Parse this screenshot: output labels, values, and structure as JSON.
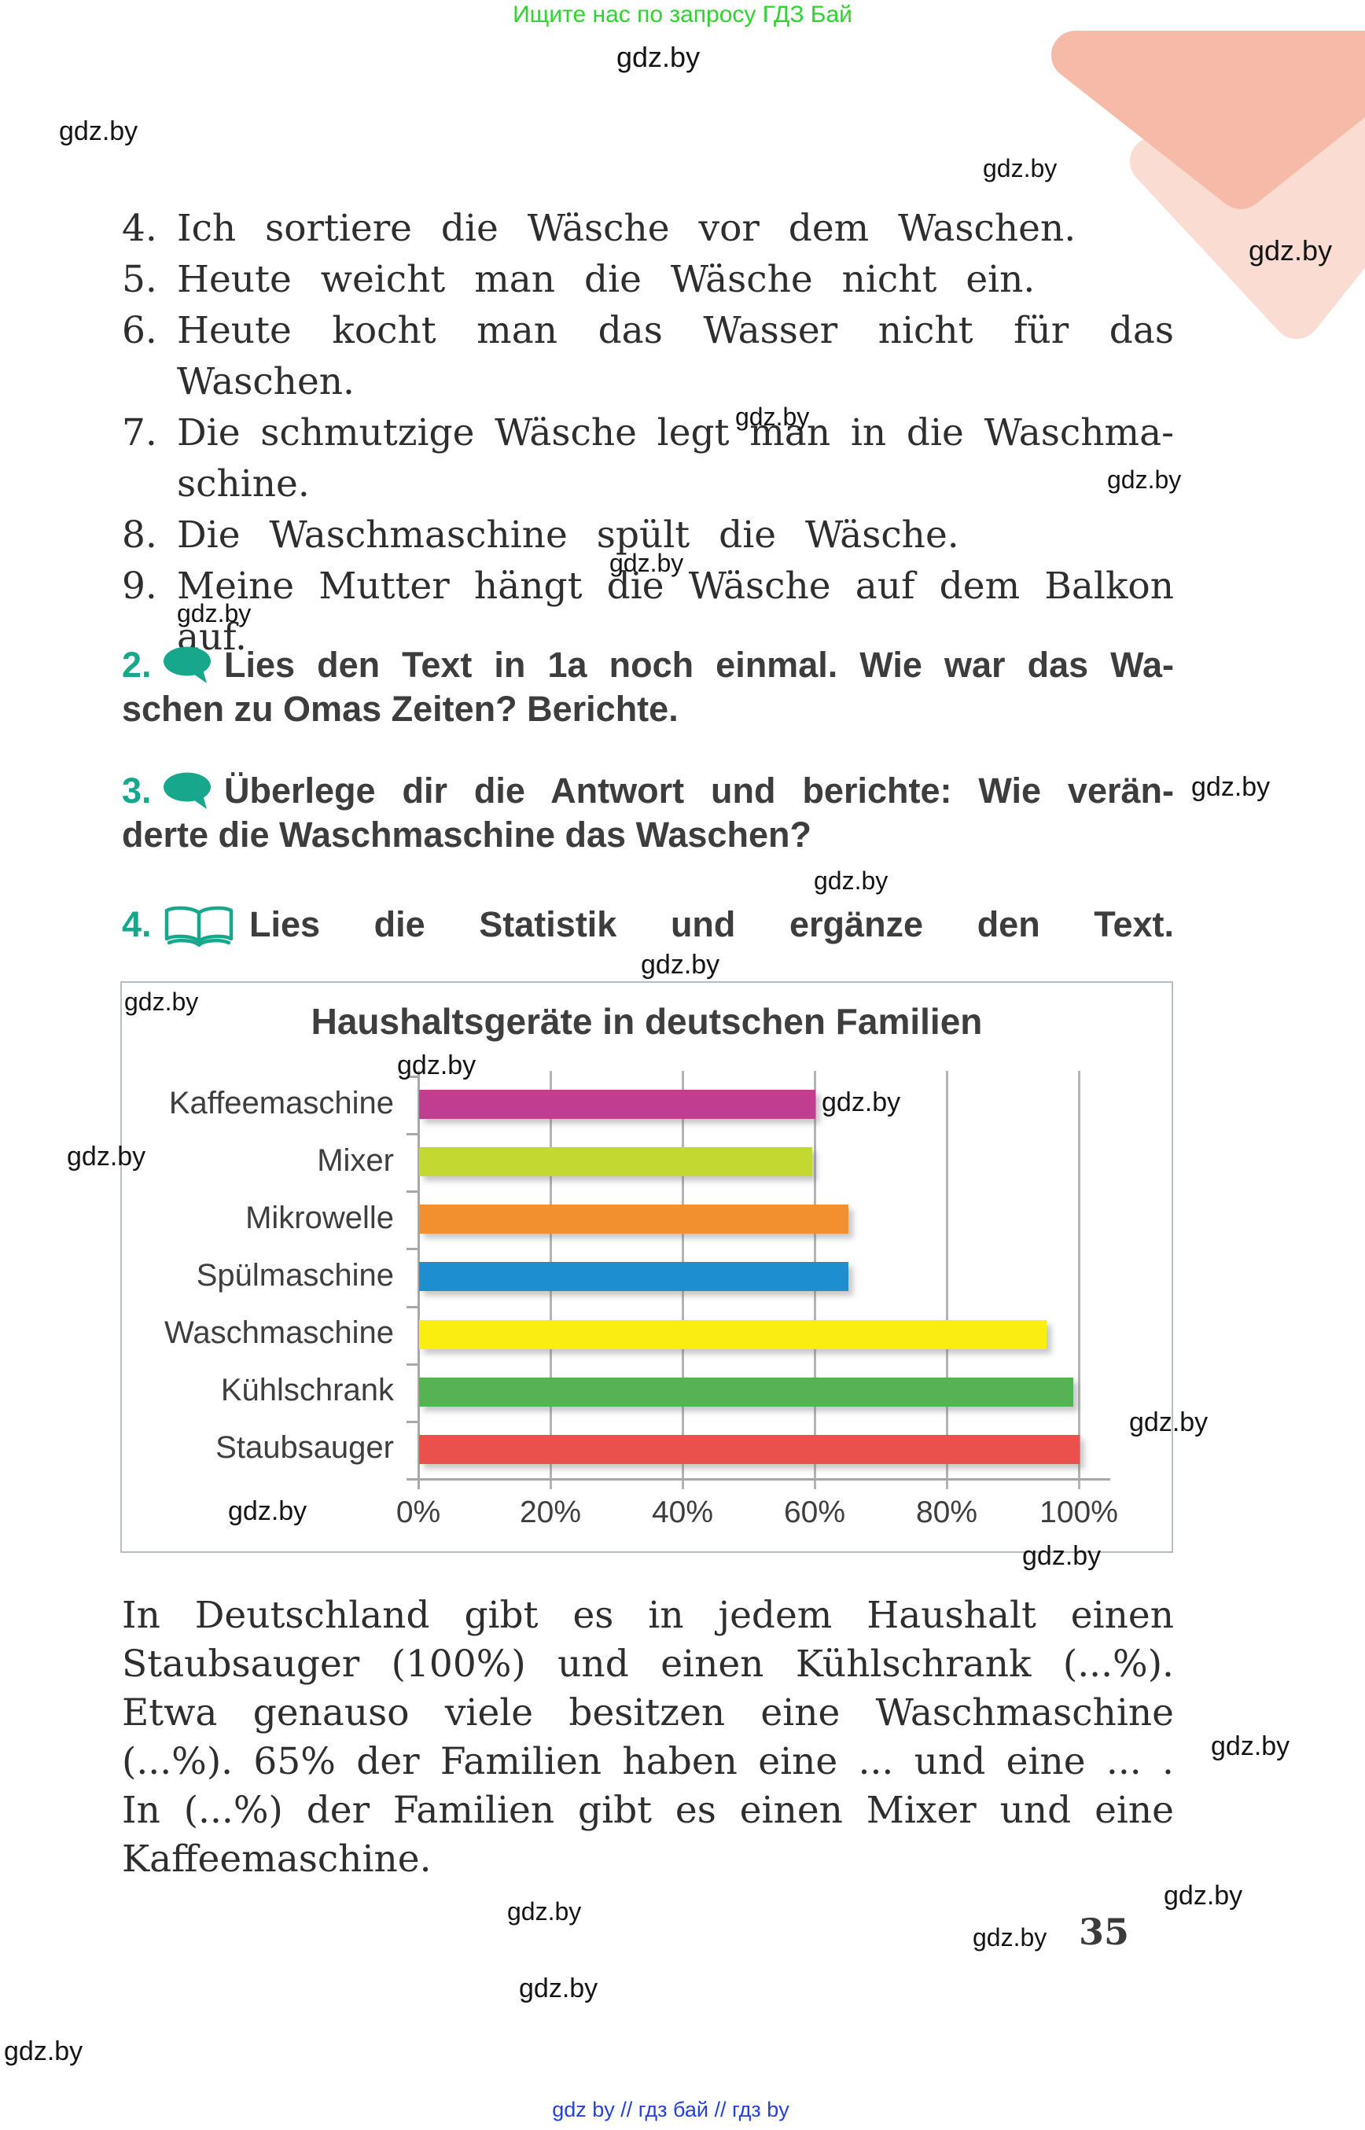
{
  "watermark": {
    "label": "gdz.by"
  },
  "header": {
    "promo": "Ищите нас по запросу ГДЗ Бай"
  },
  "exercise_list": {
    "items": [
      {
        "num": "4.",
        "lines": [
          {
            "text": "Ich sortiere die Wäsche vor dem Waschen.",
            "style": "wide"
          }
        ]
      },
      {
        "num": "5.",
        "lines": [
          {
            "text": "Heute weicht man die Wäsche nicht ein.",
            "style": "wide"
          }
        ]
      },
      {
        "num": "6.",
        "lines": [
          {
            "text": "Heute kocht man das Wasser nicht für das Waschen.",
            "style": "justify"
          }
        ]
      },
      {
        "num": "7.",
        "lines": [
          {
            "text": "Die schmutzige Wäsche legt man in die Waschma-",
            "style": "justify"
          },
          {
            "text": "schine.",
            "style": "normal"
          }
        ]
      },
      {
        "num": "8.",
        "lines": [
          {
            "text": "Die Waschmaschine spült die Wäsche.",
            "style": "wide"
          }
        ]
      },
      {
        "num": "9.",
        "lines": [
          {
            "text": "Meine Mutter hängt die Wäsche auf dem Balkon",
            "style": "justify"
          },
          {
            "text": "auf.",
            "style": "normal"
          }
        ]
      }
    ]
  },
  "tasks": [
    {
      "num": "2.",
      "icon": "speech-bubble",
      "lines": [
        "Lies den Text in 1a noch einmal. Wie war das Wa-",
        "schen zu Omas Zeiten? Berichte."
      ]
    },
    {
      "num": "3.",
      "icon": "speech-bubble",
      "lines": [
        "Überlege dir die Antwort und berichte: Wie verän-",
        "derte die Waschmaschine das Waschen?"
      ]
    },
    {
      "num": "4.",
      "icon": "open-book",
      "lines": [
        "Lies die Statistik und ergänze den Text."
      ]
    }
  ],
  "chart_data": {
    "type": "bar",
    "orientation": "horizontal",
    "title": "Haushaltsgeräte in deutschen Familien",
    "categories": [
      "Kaffeemaschine",
      "Mixer",
      "Mikrowelle",
      "Spülmaschine",
      "Waschmaschine",
      "Kühlschrank",
      "Staubsauger"
    ],
    "values": [
      60,
      59.5,
      65,
      65,
      95,
      99,
      100
    ],
    "colors": [
      "#c13d90",
      "#c4d832",
      "#f29030",
      "#1d8fd1",
      "#f9ee10",
      "#57b253",
      "#ea514c"
    ],
    "x_ticks": [
      "0%",
      "20%",
      "40%",
      "60%",
      "80%",
      "100%"
    ],
    "xlabel": "",
    "ylabel": "",
    "xlim": [
      0,
      100
    ],
    "grid": true,
    "legend": false
  },
  "paragraph": {
    "lines": [
      {
        "text": "In Deutschland gibt es in jedem Haushalt einen",
        "style": "justify"
      },
      {
        "text": "Staubsauger (100%) und einen Kühlschrank (...%).",
        "style": "justify"
      },
      {
        "text": "Etwa genauso viele besitzen eine Waschmaschine",
        "style": "justify"
      },
      {
        "text": "(...%). 65% der Familien haben eine ... und eine ... .",
        "style": "justify"
      },
      {
        "text": "In (...%) der Familien gibt es einen Mixer und eine",
        "style": "justify"
      },
      {
        "text": "Kaffeemaschine.",
        "style": "normal"
      }
    ]
  },
  "page_number": "35",
  "footer": {
    "links": "gdz by  //  гдз бай  //  гдз by"
  },
  "colors": {
    "accent_teal": "#17a78c",
    "promo_green": "#2ed32e",
    "footer_blue": "#2441dd",
    "deco_salmon": "#f5bba8",
    "deco_salmon_light": "#fbdcd2"
  }
}
